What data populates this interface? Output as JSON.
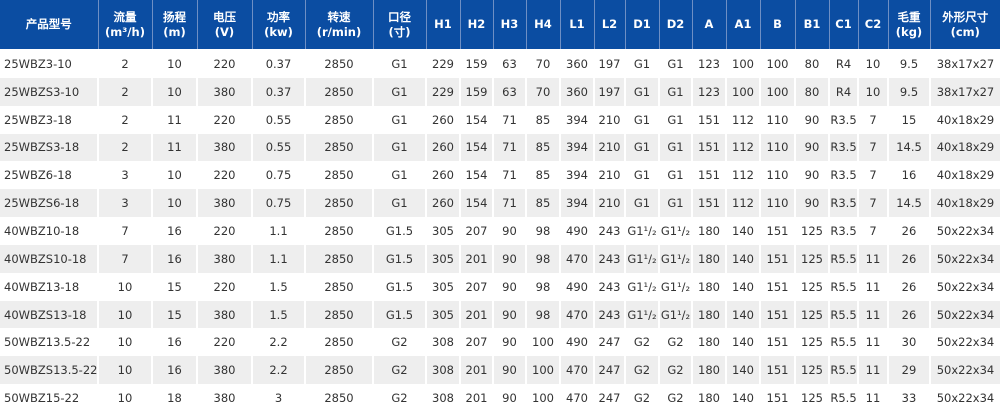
{
  "table": {
    "headers": [
      [
        "产品型号",
        ""
      ],
      [
        "流量",
        "(m³/h)"
      ],
      [
        "扬程",
        "(m)"
      ],
      [
        "电压",
        "(V)"
      ],
      [
        "功率",
        "(kw)"
      ],
      [
        "转速",
        "(r/min)"
      ],
      [
        "口径",
        "(寸)"
      ],
      [
        "H1",
        ""
      ],
      [
        "H2",
        ""
      ],
      [
        "H3",
        ""
      ],
      [
        "H4",
        ""
      ],
      [
        "L1",
        ""
      ],
      [
        "L2",
        ""
      ],
      [
        "D1",
        ""
      ],
      [
        "D2",
        ""
      ],
      [
        "A",
        ""
      ],
      [
        "A1",
        ""
      ],
      [
        "B",
        ""
      ],
      [
        "B1",
        ""
      ],
      [
        "C1",
        ""
      ],
      [
        "C2",
        ""
      ],
      [
        "毛重",
        "(kg)"
      ],
      [
        "外形尺寸",
        "(cm)"
      ]
    ],
    "rows": [
      [
        "25WBZ3-10",
        "2",
        "10",
        "220",
        "0.37",
        "2850",
        "G1",
        "229",
        "159",
        "63",
        "70",
        "360",
        "197",
        "G1",
        "G1",
        "123",
        "100",
        "100",
        "80",
        "R4",
        "10",
        "9.5",
        "38x17x27"
      ],
      [
        "25WBZS3-10",
        "2",
        "10",
        "380",
        "0.37",
        "2850",
        "G1",
        "229",
        "159",
        "63",
        "70",
        "360",
        "197",
        "G1",
        "G1",
        "123",
        "100",
        "100",
        "80",
        "R4",
        "10",
        "9.5",
        "38x17x27"
      ],
      [
        "25WBZ3-18",
        "2",
        "11",
        "220",
        "0.55",
        "2850",
        "G1",
        "260",
        "154",
        "71",
        "85",
        "394",
        "210",
        "G1",
        "G1",
        "151",
        "112",
        "110",
        "90",
        "R3.5",
        "7",
        "15",
        "40x18x29"
      ],
      [
        "25WBZS3-18",
        "2",
        "11",
        "380",
        "0.55",
        "2850",
        "G1",
        "260",
        "154",
        "71",
        "85",
        "394",
        "210",
        "G1",
        "G1",
        "151",
        "112",
        "110",
        "90",
        "R3.5",
        "7",
        "14.5",
        "40x18x29"
      ],
      [
        "25WBZ6-18",
        "3",
        "10",
        "220",
        "0.75",
        "2850",
        "G1",
        "260",
        "154",
        "71",
        "85",
        "394",
        "210",
        "G1",
        "G1",
        "151",
        "112",
        "110",
        "90",
        "R3.5",
        "7",
        "16",
        "40x18x29"
      ],
      [
        "25WBZS6-18",
        "3",
        "10",
        "380",
        "0.75",
        "2850",
        "G1",
        "260",
        "154",
        "71",
        "85",
        "394",
        "210",
        "G1",
        "G1",
        "151",
        "112",
        "110",
        "90",
        "R3.5",
        "7",
        "14.5",
        "40x18x29"
      ],
      [
        "40WBZ10-18",
        "7",
        "16",
        "220",
        "1.1",
        "2850",
        "G1.5",
        "305",
        "207",
        "90",
        "98",
        "490",
        "243",
        "G1¹/₂",
        "G1¹/₂",
        "180",
        "140",
        "151",
        "125",
        "R3.5",
        "7",
        "26",
        "50x22x34"
      ],
      [
        "40WBZS10-18",
        "7",
        "16",
        "380",
        "1.1",
        "2850",
        "G1.5",
        "305",
        "201",
        "90",
        "98",
        "470",
        "243",
        "G1¹/₂",
        "G1¹/₂",
        "180",
        "140",
        "151",
        "125",
        "R5.5",
        "11",
        "26",
        "50x22x34"
      ],
      [
        "40WBZ13-18",
        "10",
        "15",
        "220",
        "1.5",
        "2850",
        "G1.5",
        "305",
        "207",
        "90",
        "98",
        "490",
        "243",
        "G1¹/₂",
        "G1¹/₂",
        "180",
        "140",
        "151",
        "125",
        "R5.5",
        "11",
        "26",
        "50x22x34"
      ],
      [
        "40WBZS13-18",
        "10",
        "15",
        "380",
        "1.5",
        "2850",
        "G1.5",
        "305",
        "201",
        "90",
        "98",
        "470",
        "243",
        "G1¹/₂",
        "G1¹/₂",
        "180",
        "140",
        "151",
        "125",
        "R5.5",
        "11",
        "26",
        "50x22x34"
      ],
      [
        "50WBZ13.5-22",
        "10",
        "16",
        "220",
        "2.2",
        "2850",
        "G2",
        "308",
        "207",
        "90",
        "100",
        "490",
        "247",
        "G2",
        "G2",
        "180",
        "140",
        "151",
        "125",
        "R5.5",
        "11",
        "30",
        "50x22x34"
      ],
      [
        "50WBZS13.5-22",
        "10",
        "16",
        "380",
        "2.2",
        "2850",
        "G2",
        "308",
        "201",
        "90",
        "100",
        "470",
        "247",
        "G2",
        "G2",
        "180",
        "140",
        "151",
        "125",
        "R5.5",
        "11",
        "29",
        "50x22x34"
      ],
      [
        "50WBZ15-22",
        "10",
        "18",
        "380",
        "3",
        "2850",
        "G2",
        "308",
        "201",
        "90",
        "100",
        "470",
        "247",
        "G2",
        "G2",
        "180",
        "140",
        "151",
        "125",
        "R5.5",
        "11",
        "33",
        "50x22x34"
      ]
    ]
  },
  "colors": {
    "header_bg": "#0b4da2",
    "alt_row_bg": "#eeeeee"
  }
}
